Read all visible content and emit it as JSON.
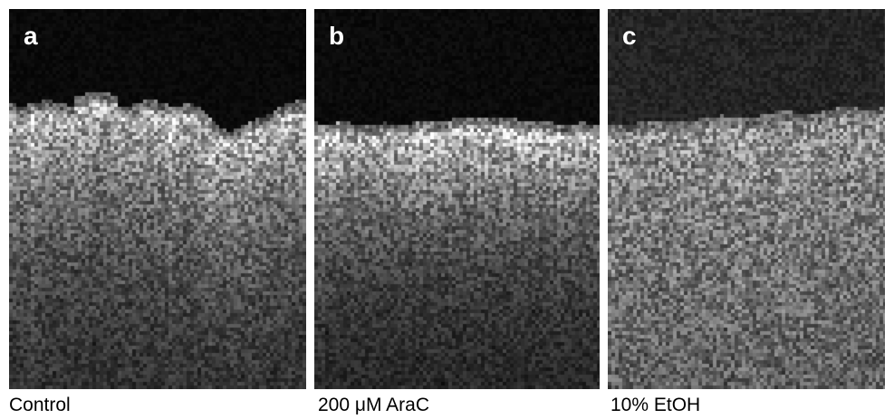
{
  "panels": [
    {
      "letter": "a",
      "caption": "Control"
    },
    {
      "letter": "b",
      "caption": "200 μM AraC"
    },
    {
      "letter": "c",
      "caption": "10% EtOH"
    }
  ]
}
